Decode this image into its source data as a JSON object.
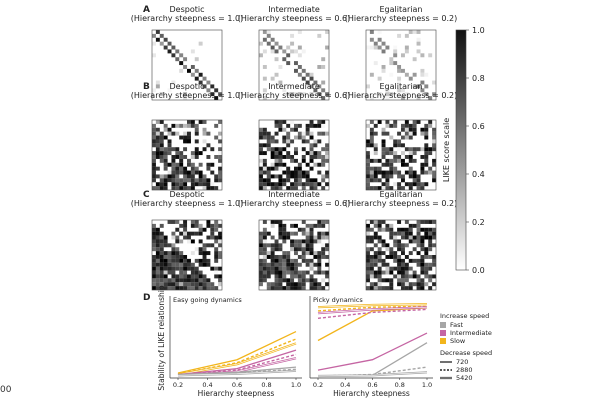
{
  "figure": {
    "stray_label": "00"
  },
  "chart_data": {
    "type": "heatmap",
    "rows": [
      {
        "letter": "A",
        "panels": [
          {
            "title": "Despotic",
            "subtitle": "(Hierarchy steepness = 1.0)"
          },
          {
            "title": "Intermediate",
            "subtitle": "(Hierarchy steepness = 0.6)"
          },
          {
            "title": "Egalitarian",
            "subtitle": "(Hierarchy steepness = 0.2)"
          }
        ]
      },
      {
        "letter": "B",
        "panels": [
          {
            "title": "Despotic",
            "subtitle": "(Hierarchy steepness = 1.0)"
          },
          {
            "title": "Intermediate",
            "subtitle": "(Hierarchy steepness = 0.6)"
          },
          {
            "title": "Egalitarian",
            "subtitle": "(Hierarchy steepness = 0.2)"
          }
        ]
      },
      {
        "letter": "C",
        "panels": [
          {
            "title": "Despotic",
            "subtitle": "(Hierarchy steepness = 1.0)"
          },
          {
            "title": "Intermediate",
            "subtitle": "(Hierarchy steepness = 0.6)"
          },
          {
            "title": "Egalitarian",
            "subtitle": "(Hierarchy steepness = 0.2)"
          }
        ]
      }
    ],
    "colorbar": {
      "label": "LIKE score scale",
      "ticks": [
        "1.0",
        "0.8",
        "0.6",
        "0.4",
        "0.2",
        "0.0"
      ],
      "range": [
        0,
        1
      ]
    },
    "panel_d": {
      "letter": "D",
      "ylabel": "Stability of LIKE relationship",
      "ylim": [
        0,
        1
      ],
      "xlim": [
        0.2,
        1.0
      ],
      "xticks": [
        "0.2",
        "0.4",
        "0.6",
        "0.8",
        "1.0"
      ],
      "subplots": [
        {
          "title": "Easy going dynamics",
          "xlabel": "Hierarchy steepness",
          "series": [
            {
              "speed": "slow",
              "decrease": "720",
              "x": [
                0.2,
                0.6,
                1.0
              ],
              "y": [
                0.04,
                0.22,
                0.6
              ]
            },
            {
              "speed": "slow",
              "decrease": "2880",
              "x": [
                0.2,
                0.6,
                1.0
              ],
              "y": [
                0.03,
                0.18,
                0.5
              ]
            },
            {
              "speed": "slow",
              "decrease": "5420",
              "x": [
                0.2,
                0.6,
                1.0
              ],
              "y": [
                0.02,
                0.16,
                0.44
              ]
            },
            {
              "speed": "intermediate",
              "decrease": "720",
              "x": [
                0.2,
                0.6,
                1.0
              ],
              "y": [
                0.02,
                0.1,
                0.35
              ]
            },
            {
              "speed": "intermediate",
              "decrease": "2880",
              "x": [
                0.2,
                0.6,
                1.0
              ],
              "y": [
                0.01,
                0.08,
                0.29
              ]
            },
            {
              "speed": "intermediate",
              "decrease": "5420",
              "x": [
                0.2,
                0.6,
                1.0
              ],
              "y": [
                0.01,
                0.06,
                0.24
              ]
            },
            {
              "speed": "fast",
              "decrease": "720",
              "x": [
                0.2,
                0.6,
                1.0
              ],
              "y": [
                0.02,
                0.05,
                0.12
              ]
            },
            {
              "speed": "fast",
              "decrease": "2880",
              "x": [
                0.2,
                0.6,
                1.0
              ],
              "y": [
                0.01,
                0.04,
                0.09
              ]
            },
            {
              "speed": "fast",
              "decrease": "5420",
              "x": [
                0.2,
                0.6,
                1.0
              ],
              "y": [
                0.01,
                0.03,
                0.07
              ]
            }
          ]
        },
        {
          "title": "Picky dynamics",
          "xlabel": "Hierarchy steepness",
          "series": [
            {
              "speed": "slow",
              "decrease": "720",
              "x": [
                0.2,
                0.6,
                1.0
              ],
              "y": [
                0.48,
                0.88,
                0.92
              ]
            },
            {
              "speed": "slow",
              "decrease": "2880",
              "x": [
                0.2,
                0.6,
                1.0
              ],
              "y": [
                0.88,
                0.93,
                0.94
              ]
            },
            {
              "speed": "slow",
              "decrease": "5420",
              "x": [
                0.2,
                0.6,
                1.0
              ],
              "y": [
                0.93,
                0.96,
                0.97
              ]
            },
            {
              "speed": "intermediate",
              "decrease": "720",
              "x": [
                0.2,
                0.6,
                1.0
              ],
              "y": [
                0.08,
                0.22,
                0.58
              ]
            },
            {
              "speed": "intermediate",
              "decrease": "2880",
              "x": [
                0.2,
                0.6,
                1.0
              ],
              "y": [
                0.78,
                0.86,
                0.9
              ]
            },
            {
              "speed": "intermediate",
              "decrease": "5420",
              "x": [
                0.2,
                0.6,
                1.0
              ],
              "y": [
                0.85,
                0.9,
                0.93
              ]
            },
            {
              "speed": "fast",
              "decrease": "720",
              "x": [
                0.2,
                0.6,
                1.0
              ],
              "y": [
                0.0,
                0.01,
                0.45
              ]
            },
            {
              "speed": "fast",
              "decrease": "2880",
              "x": [
                0.2,
                0.6,
                1.0
              ],
              "y": [
                0.0,
                0.02,
                0.12
              ]
            },
            {
              "speed": "fast",
              "decrease": "5420",
              "x": [
                0.2,
                0.6,
                1.0
              ],
              "y": [
                0.0,
                0.01,
                0.05
              ]
            }
          ]
        }
      ],
      "legend": {
        "increase_title": "Increase speed",
        "increase": [
          {
            "key": "fast",
            "label": "Fast",
            "color": "#a6a6a6"
          },
          {
            "key": "intermediate",
            "label": "Intermediate",
            "color": "#c565a3"
          },
          {
            "key": "slow",
            "label": "Slow",
            "color": "#f2b51c"
          }
        ],
        "decrease_title": "Decrease speed",
        "decrease": [
          {
            "key": "720",
            "label": "720",
            "dash": "solid"
          },
          {
            "key": "2880",
            "label": "2880",
            "dash": "dotted"
          },
          {
            "key": "5420",
            "label": "5420",
            "dash": "double"
          }
        ]
      }
    }
  }
}
